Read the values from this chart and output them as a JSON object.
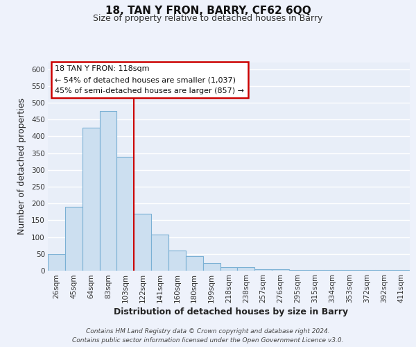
{
  "title": "18, TAN Y FRON, BARRY, CF62 6QQ",
  "subtitle": "Size of property relative to detached houses in Barry",
  "xlabel": "Distribution of detached houses by size in Barry",
  "ylabel": "Number of detached properties",
  "bar_labels": [
    "26sqm",
    "45sqm",
    "64sqm",
    "83sqm",
    "103sqm",
    "122sqm",
    "141sqm",
    "160sqm",
    "180sqm",
    "199sqm",
    "218sqm",
    "238sqm",
    "257sqm",
    "276sqm",
    "295sqm",
    "315sqm",
    "334sqm",
    "353sqm",
    "372sqm",
    "392sqm",
    "411sqm"
  ],
  "bar_values": [
    50,
    190,
    425,
    475,
    338,
    170,
    108,
    60,
    44,
    23,
    10,
    10,
    5,
    5,
    3,
    3,
    3,
    3,
    3,
    3,
    3
  ],
  "bar_color": "#ccdff0",
  "bar_edge_color": "#7ab0d4",
  "highlight_line_color": "#cc0000",
  "highlight_line_index": 5,
  "ylim": [
    0,
    620
  ],
  "yticks": [
    0,
    50,
    100,
    150,
    200,
    250,
    300,
    350,
    400,
    450,
    500,
    550,
    600
  ],
  "annotation_line1": "18 TAN Y FRON: 118sqm",
  "annotation_line2": "← 54% of detached houses are smaller (1,037)",
  "annotation_line3": "45% of semi-detached houses are larger (857) →",
  "footer_line1": "Contains HM Land Registry data © Crown copyright and database right 2024.",
  "footer_line2": "Contains public sector information licensed under the Open Government Licence v3.0.",
  "background_color": "#eef2fb",
  "plot_bg_color": "#e8eef8",
  "grid_color": "#ffffff",
  "title_fontsize": 11,
  "subtitle_fontsize": 9,
  "axis_label_fontsize": 9,
  "tick_fontsize": 7.5,
  "footer_fontsize": 6.5,
  "annot_fontsize": 8
}
